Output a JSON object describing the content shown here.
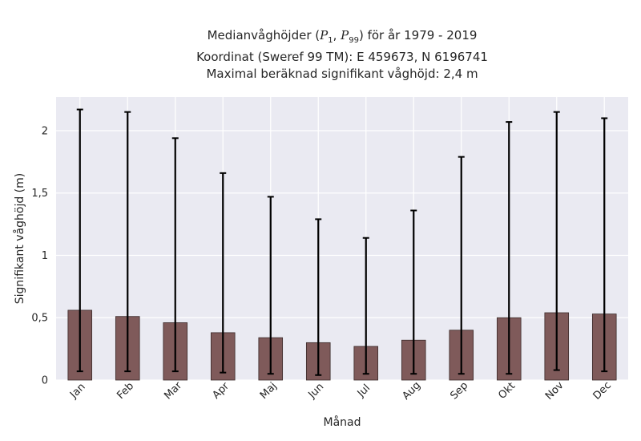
{
  "title": {
    "line1_prefix": "Medianvåghöjder (",
    "p_first_sub": "1",
    "p_second_sub": "99",
    "line1_suffix": ") för år 1979 - 2019",
    "line2": "Koordinat (Sweref 99 TM): E 459673, N 6196741",
    "line3": "Maximal beräknad signifikant våghöjd: 2,4 m"
  },
  "chart_data": {
    "type": "bar",
    "xlabel": "Månad",
    "ylabel": "Signifikant våghöjd (m)",
    "ylim": [
      0,
      2.27
    ],
    "yticks": [
      0,
      0.5,
      1,
      1.5,
      2
    ],
    "ytick_labels": [
      "0",
      "0,5",
      "1",
      "1,5",
      "2"
    ],
    "grid": true,
    "categories": [
      "Jan",
      "Feb",
      "Mar",
      "Apr",
      "Maj",
      "Jun",
      "Jul",
      "Aug",
      "Sep",
      "Okt",
      "Nov",
      "Dec"
    ],
    "values": [
      0.56,
      0.51,
      0.46,
      0.38,
      0.34,
      0.3,
      0.27,
      0.32,
      0.4,
      0.5,
      0.54,
      0.53
    ],
    "error_low": [
      0.07,
      0.07,
      0.07,
      0.06,
      0.05,
      0.04,
      0.05,
      0.05,
      0.05,
      0.05,
      0.08,
      0.07
    ],
    "error_high": [
      2.17,
      2.15,
      1.94,
      1.66,
      1.47,
      1.29,
      1.14,
      1.36,
      1.79,
      2.07,
      2.15,
      2.1
    ],
    "bar_color": "#7f5a5a",
    "background_color": "#eaeaf2",
    "error_color": "#000000"
  }
}
